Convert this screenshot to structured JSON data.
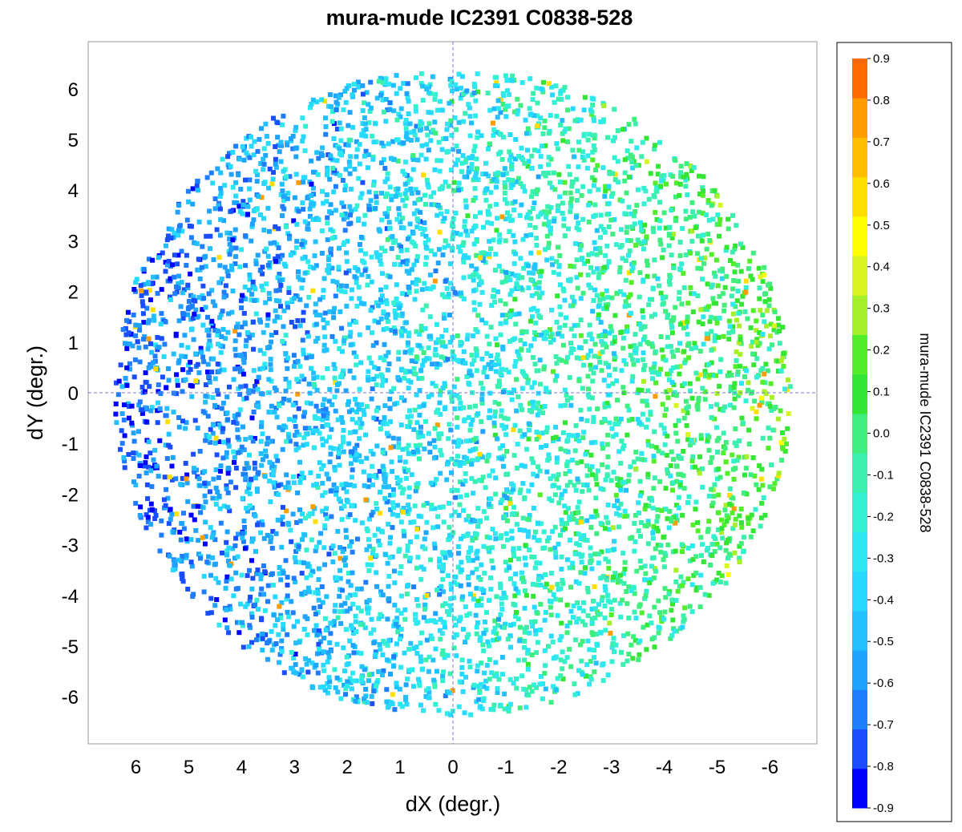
{
  "chart_data": {
    "type": "scatter",
    "title": "mura-mude IC2391  C0838-528",
    "xlabel": "dX (degr.)",
    "ylabel": "dY (degr.)",
    "x_reversed": true,
    "xlim": [
      7.0,
      -7.0
    ],
    "ylim": [
      -6.8,
      6.8
    ],
    "x_ticks": [
      "6",
      "5",
      "4",
      "3",
      "2",
      "1",
      "0",
      "-1",
      "-2",
      "-3",
      "-4",
      "-5",
      "-6"
    ],
    "y_ticks": [
      "6",
      "5",
      "4",
      "3",
      "2",
      "1",
      "0",
      "-1",
      "-2",
      "-3",
      "-4",
      "-5",
      "-6"
    ],
    "zero_lines": true,
    "grid": false,
    "field_radius_deg": 6.4,
    "point_count_approx": 6000,
    "colorbar": {
      "label": "mura-mude IC2391  C0838-528",
      "min": -0.9,
      "max": 0.9,
      "ticks": [
        "0.9",
        "0.8",
        "0.7",
        "0.6",
        "0.5",
        "0.4",
        "0.3",
        "0.2",
        "0.1",
        "0.0",
        "-0.1",
        "-0.2",
        "-0.3",
        "-0.4",
        "-0.5",
        "-0.6",
        "-0.7",
        "-0.8",
        "-0.9"
      ],
      "colors": [
        "#0000ff",
        "#1a4dff",
        "#1f7dff",
        "#1fa3ff",
        "#22c0ff",
        "#27d9ff",
        "#2ee8f0",
        "#34f0d2",
        "#3bf0ae",
        "#40ee7e",
        "#33e633",
        "#52ee2a",
        "#a6f02a",
        "#d8f51f",
        "#ffff00",
        "#ffdf00",
        "#ffbf00",
        "#ff9c00",
        "#ff6a00"
      ]
    },
    "color_trend": "values rise from about -0.8 on the left (positive dX) to about +0.2 on the right (negative dX); typical scatter about 0.15"
  }
}
